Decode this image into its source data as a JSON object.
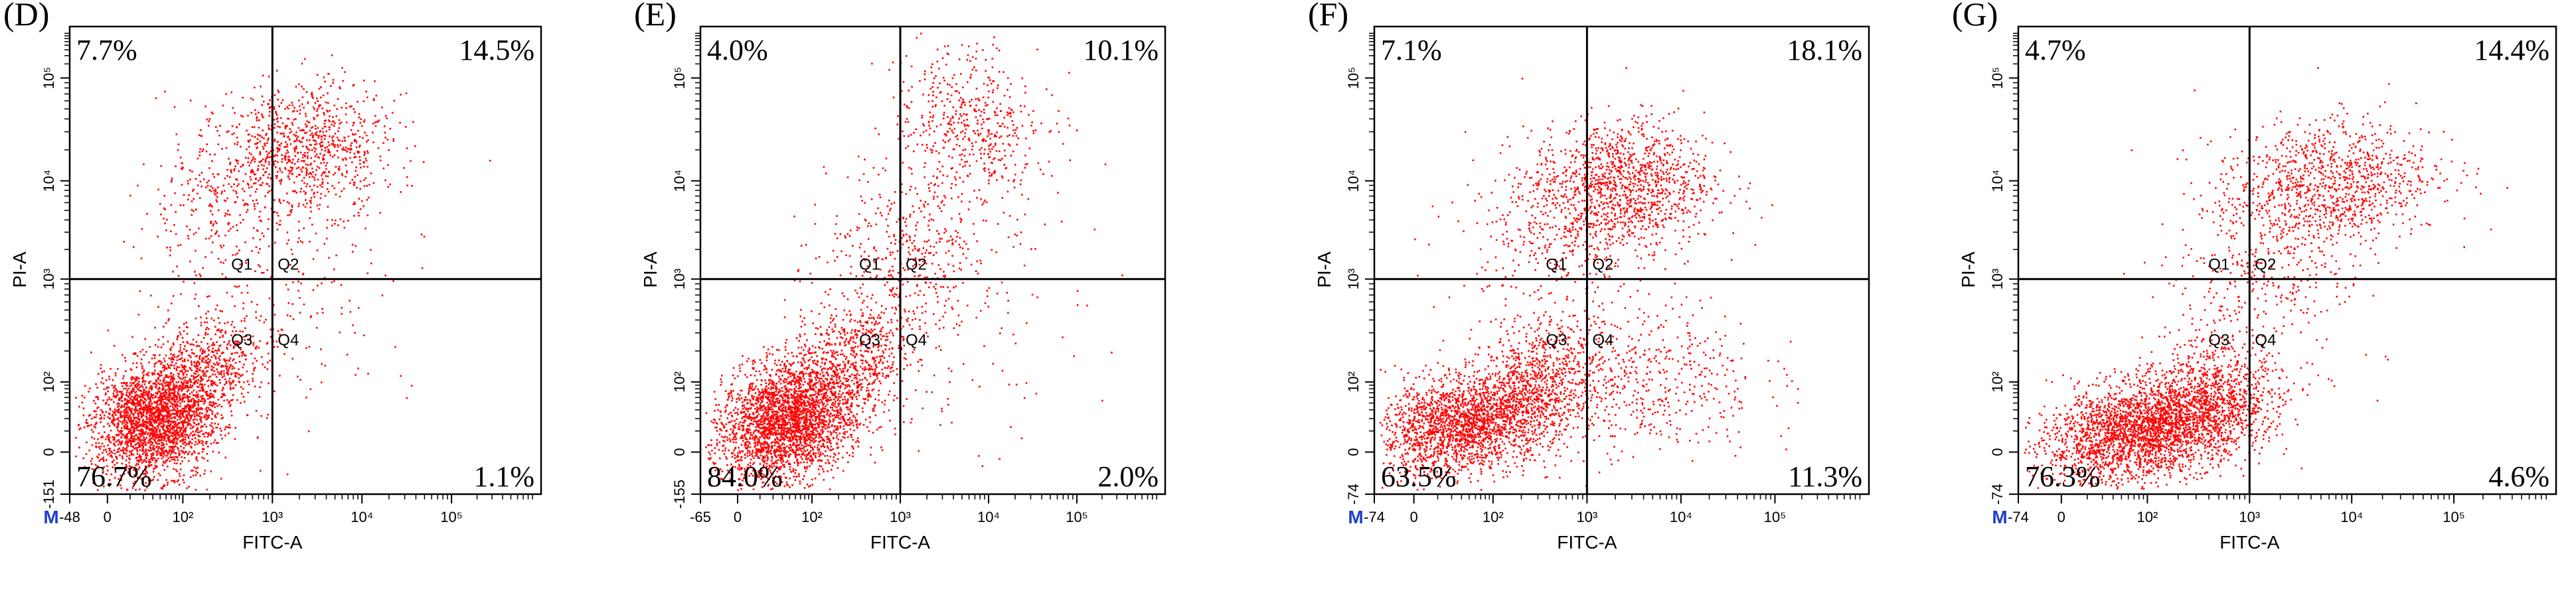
{
  "chart_data": [
    {
      "type": "scatter",
      "panel_label": "(D)",
      "xlabel": "FITC-A",
      "ylabel": "PI-A",
      "x_ticks": [
        {
          "text": "-48",
          "t": 0.0
        },
        {
          "text": "0",
          "t": 0.08
        },
        {
          "text": "10²",
          "t": 0.24
        },
        {
          "text": "10³",
          "t": 0.43
        },
        {
          "text": "10⁴",
          "t": 0.62
        },
        {
          "text": "10⁵",
          "t": 0.81
        }
      ],
      "y_ticks": [
        {
          "text": "-151",
          "t": 0.0
        },
        {
          "text": "0",
          "t": 0.09
        },
        {
          "text": "10²",
          "t": 0.24
        },
        {
          "text": "10³",
          "t": 0.46
        },
        {
          "text": "10⁴",
          "t": 0.67
        },
        {
          "text": "10⁵",
          "t": 0.89
        }
      ],
      "gate": {
        "x": 0.43,
        "y": 0.46
      },
      "quadrant_labels": [
        "Q1",
        "Q2",
        "Q3",
        "Q4"
      ],
      "percentages": {
        "Q1": "7.7%",
        "Q2": "14.5%",
        "Q3": "76.7%",
        "Q4": "1.1%"
      },
      "marker": "M",
      "clusters": [
        {
          "cx": 0.18,
          "cy": 0.16,
          "sx": 0.07,
          "sy": 0.06,
          "n": 2600,
          "rot": 0.6
        },
        {
          "cx": 0.3,
          "cy": 0.28,
          "sx": 0.06,
          "sy": 0.05,
          "n": 500,
          "rot": 0.6
        },
        {
          "cx": 0.5,
          "cy": 0.74,
          "sx": 0.09,
          "sy": 0.07,
          "n": 900,
          "rot": 0.1
        },
        {
          "cx": 0.3,
          "cy": 0.62,
          "sx": 0.08,
          "sy": 0.08,
          "n": 250,
          "rot": 0.0
        },
        {
          "cx": 0.45,
          "cy": 0.45,
          "sx": 0.14,
          "sy": 0.12,
          "n": 200,
          "rot": 0.0
        }
      ]
    },
    {
      "type": "scatter",
      "panel_label": "(E)",
      "xlabel": "FITC-A",
      "ylabel": "PI-A",
      "x_ticks": [
        {
          "text": "-65",
          "t": 0.0
        },
        {
          "text": "0",
          "t": 0.08
        },
        {
          "text": "10²",
          "t": 0.24
        },
        {
          "text": "10³",
          "t": 0.43
        },
        {
          "text": "10⁴",
          "t": 0.62
        },
        {
          "text": "10⁵",
          "t": 0.81
        }
      ],
      "y_ticks": [
        {
          "text": "-155",
          "t": 0.0
        },
        {
          "text": "0",
          "t": 0.09
        },
        {
          "text": "10²",
          "t": 0.24
        },
        {
          "text": "10³",
          "t": 0.46
        },
        {
          "text": "10⁴",
          "t": 0.67
        },
        {
          "text": "10⁵",
          "t": 0.89
        }
      ],
      "gate": {
        "x": 0.43,
        "y": 0.46
      },
      "quadrant_labels": [
        "Q1",
        "Q2",
        "Q3",
        "Q4"
      ],
      "percentages": {
        "Q1": "4.0%",
        "Q2": "10.1%",
        "Q3": "84.0%",
        "Q4": "2.0%"
      },
      "marker": "",
      "clusters": [
        {
          "cx": 0.19,
          "cy": 0.16,
          "sx": 0.08,
          "sy": 0.06,
          "n": 2900,
          "rot": 0.5
        },
        {
          "cx": 0.33,
          "cy": 0.3,
          "sx": 0.06,
          "sy": 0.06,
          "n": 500,
          "rot": 0.7
        },
        {
          "cx": 0.58,
          "cy": 0.78,
          "sx": 0.08,
          "sy": 0.09,
          "n": 550,
          "rot": 0.3
        },
        {
          "cx": 0.45,
          "cy": 0.5,
          "sx": 0.08,
          "sy": 0.1,
          "n": 350,
          "rot": 0.8
        },
        {
          "cx": 0.52,
          "cy": 0.4,
          "sx": 0.15,
          "sy": 0.14,
          "n": 150,
          "rot": 0.0
        }
      ]
    },
    {
      "type": "scatter",
      "panel_label": "(F)",
      "xlabel": "FITC-A",
      "ylabel": "PI-A",
      "x_ticks": [
        {
          "text": "-74",
          "t": 0.0
        },
        {
          "text": "0",
          "t": 0.08
        },
        {
          "text": "10²",
          "t": 0.24
        },
        {
          "text": "10³",
          "t": 0.43
        },
        {
          "text": "10⁴",
          "t": 0.62
        },
        {
          "text": "10⁵",
          "t": 0.81
        }
      ],
      "y_ticks": [
        {
          "text": "-74",
          "t": 0.0
        },
        {
          "text": "0",
          "t": 0.09
        },
        {
          "text": "10²",
          "t": 0.24
        },
        {
          "text": "10³",
          "t": 0.46
        },
        {
          "text": "10⁴",
          "t": 0.67
        },
        {
          "text": "10⁵",
          "t": 0.89
        }
      ],
      "gate": {
        "x": 0.43,
        "y": 0.46
      },
      "quadrant_labels": [
        "Q1",
        "Q2",
        "Q3",
        "Q4"
      ],
      "percentages": {
        "Q1": "7.1%",
        "Q2": "18.1%",
        "Q3": "63.5%",
        "Q4": "11.3%"
      },
      "marker": "M",
      "clusters": [
        {
          "cx": 0.18,
          "cy": 0.15,
          "sx": 0.09,
          "sy": 0.05,
          "n": 2000,
          "rot": 0.2
        },
        {
          "cx": 0.32,
          "cy": 0.24,
          "sx": 0.07,
          "sy": 0.06,
          "n": 700,
          "rot": 0.4
        },
        {
          "cx": 0.5,
          "cy": 0.66,
          "sx": 0.09,
          "sy": 0.07,
          "n": 1200,
          "rot": 0.1
        },
        {
          "cx": 0.52,
          "cy": 0.25,
          "sx": 0.13,
          "sy": 0.09,
          "n": 600,
          "rot": 0.0
        },
        {
          "cx": 0.36,
          "cy": 0.56,
          "sx": 0.1,
          "sy": 0.08,
          "n": 300,
          "rot": 0.0
        }
      ]
    },
    {
      "type": "scatter",
      "panel_label": "(G)",
      "xlabel": "FITC-A",
      "ylabel": "PI-A",
      "x_ticks": [
        {
          "text": "-74",
          "t": 0.0
        },
        {
          "text": "0",
          "t": 0.08
        },
        {
          "text": "10²",
          "t": 0.24
        },
        {
          "text": "10³",
          "t": 0.43
        },
        {
          "text": "10⁴",
          "t": 0.62
        },
        {
          "text": "10⁵",
          "t": 0.81
        }
      ],
      "y_ticks": [
        {
          "text": "-74",
          "t": 0.0
        },
        {
          "text": "0",
          "t": 0.09
        },
        {
          "text": "10²",
          "t": 0.24
        },
        {
          "text": "10³",
          "t": 0.46
        },
        {
          "text": "10⁴",
          "t": 0.67
        },
        {
          "text": "10⁵",
          "t": 0.89
        }
      ],
      "gate": {
        "x": 0.43,
        "y": 0.46
      },
      "quadrant_labels": [
        "Q1",
        "Q2",
        "Q3",
        "Q4"
      ],
      "percentages": {
        "Q1": "4.7%",
        "Q2": "14.4%",
        "Q3": "76.3%",
        "Q4": "4.6%"
      },
      "marker": "M",
      "clusters": [
        {
          "cx": 0.24,
          "cy": 0.14,
          "sx": 0.1,
          "sy": 0.05,
          "n": 2800,
          "rot": 0.25
        },
        {
          "cx": 0.36,
          "cy": 0.22,
          "sx": 0.06,
          "sy": 0.06,
          "n": 600,
          "rot": 0.6
        },
        {
          "cx": 0.57,
          "cy": 0.66,
          "sx": 0.1,
          "sy": 0.07,
          "n": 1100,
          "rot": 0.2
        },
        {
          "cx": 0.45,
          "cy": 0.45,
          "sx": 0.08,
          "sy": 0.09,
          "n": 300,
          "rot": 0.8
        }
      ]
    }
  ],
  "colors": {
    "dot": "#ff0000",
    "axis": "#000000",
    "marker": "#1f3fcf"
  }
}
